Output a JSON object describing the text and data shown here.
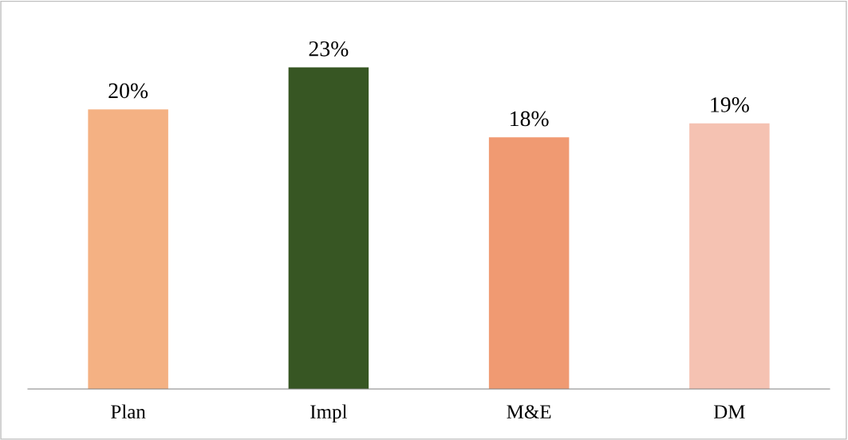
{
  "chart_data": {
    "type": "bar",
    "categories": [
      "Plan",
      "Impl",
      "M&E",
      "DM"
    ],
    "values": [
      20,
      23,
      18,
      19
    ],
    "colors": [
      "#f4b183",
      "#375623",
      "#f09a72",
      "#f5c2b2"
    ],
    "value_labels": [
      "20%",
      "23%",
      "18%",
      "19%"
    ],
    "grid": false,
    "legend": false,
    "tick_labels": "x"
  }
}
